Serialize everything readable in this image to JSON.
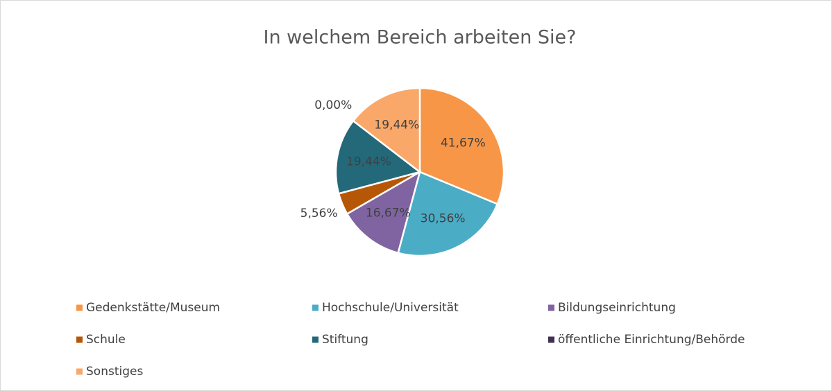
{
  "chart_data": {
    "type": "pie",
    "title": "In welchem Bereich arbeiten Sie?",
    "categories": [
      "Gedenkstätte/Museum",
      "Hochschule/Universität",
      "Bildungseinrichtung",
      "Schule",
      "Stiftung",
      "öffentliche Einrichtung/Behörde",
      "Sonstiges"
    ],
    "values": [
      41.67,
      30.56,
      16.67,
      5.56,
      19.44,
      0,
      19.44
    ],
    "value_labels": [
      "41,67%",
      "30,56%",
      "16,67%",
      "5,56%",
      "19,44%",
      "0,00%",
      "19,44%"
    ],
    "colors": [
      "#f79646",
      "#4bacc6",
      "#8064a2",
      "#b65708",
      "#23697a",
      "#403152",
      "#f9a86a"
    ],
    "legend": "bottom"
  }
}
